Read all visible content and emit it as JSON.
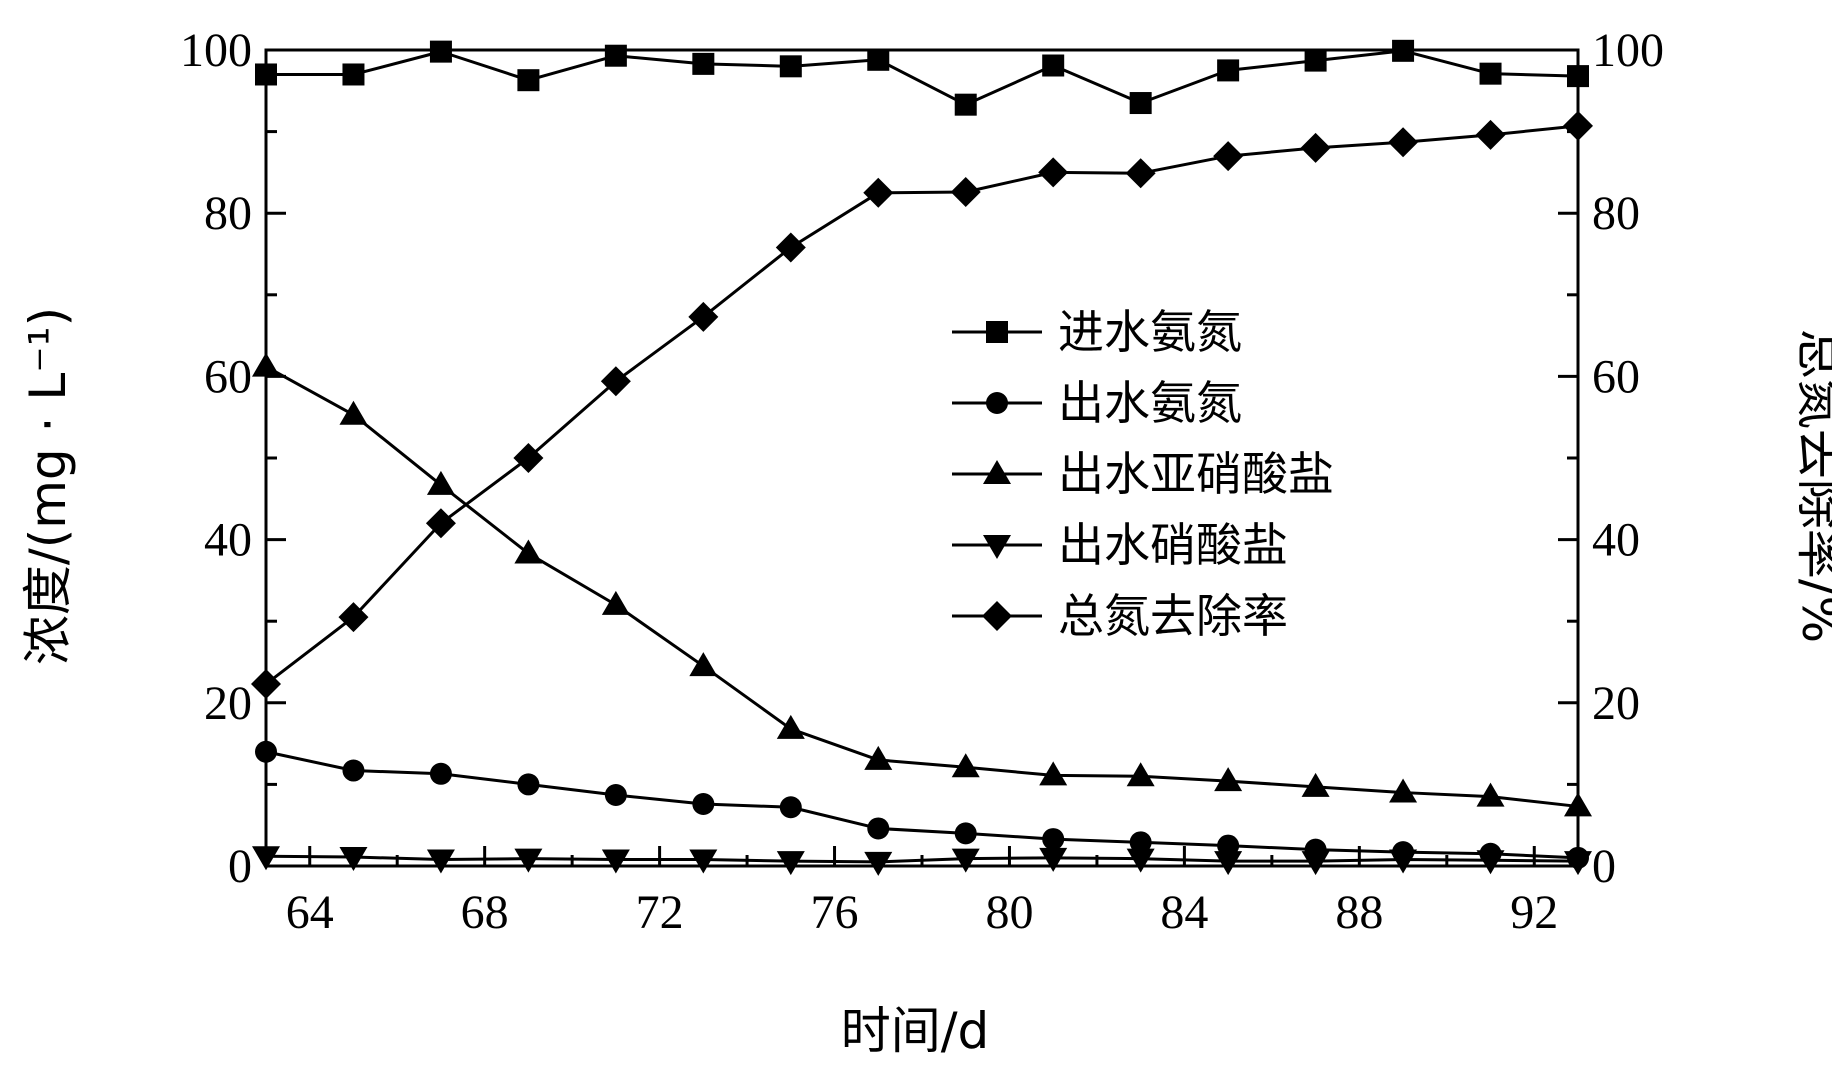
{
  "chart_data": {
    "type": "line",
    "xlabel": "时间/d",
    "ylabel": "浓度/(mg · L⁻¹)",
    "y2label": "总氮去除率/%",
    "xlim": [
      63,
      93
    ],
    "ylim": [
      0,
      100
    ],
    "y2lim": [
      0,
      100
    ],
    "xticks": [
      64,
      68,
      72,
      76,
      80,
      84,
      88,
      92
    ],
    "yticks": [
      0,
      20,
      40,
      60,
      80,
      100
    ],
    "y2ticks": [
      0,
      20,
      40,
      60,
      80,
      100
    ],
    "legend": "center-right",
    "grid": false,
    "x": [
      63,
      65,
      67,
      69,
      71,
      73,
      75,
      77,
      79,
      81,
      83,
      85,
      87,
      89,
      91,
      93
    ],
    "series": [
      {
        "name": "进水氨氮",
        "marker": "square",
        "axis": "left",
        "values": [
          97,
          97,
          99.8,
          96.3,
          99.3,
          98.3,
          98,
          98.8,
          93.3,
          98.1,
          93.5,
          97.5,
          98.7,
          99.9,
          97.1,
          96.8
        ]
      },
      {
        "name": "出水氨氮",
        "marker": "circle",
        "axis": "left",
        "values": [
          14,
          11.7,
          11.3,
          10,
          8.7,
          7.6,
          7.2,
          4.6,
          4,
          3.3,
          2.9,
          2.5,
          2,
          1.7,
          1.5,
          1
        ]
      },
      {
        "name": "出水亚硝酸盐",
        "marker": "triangle-up",
        "axis": "left",
        "values": [
          61.2,
          55.3,
          46.7,
          38.3,
          32,
          24.5,
          16.8,
          13,
          12.1,
          11.1,
          11,
          10.4,
          9.7,
          9,
          8.5,
          7.3
        ]
      },
      {
        "name": "出水硝酸盐",
        "marker": "triangle-down",
        "axis": "left",
        "values": [
          1.2,
          1.1,
          0.8,
          0.9,
          0.8,
          0.8,
          0.6,
          0.5,
          0.9,
          1,
          0.9,
          0.6,
          0.6,
          0.8,
          0.7,
          0.6
        ]
      },
      {
        "name": "总氮去除率",
        "marker": "diamond",
        "axis": "right",
        "values": [
          22.3,
          30.5,
          42,
          50,
          59.4,
          67.3,
          75.8,
          82.5,
          82.6,
          85,
          84.9,
          87,
          88,
          88.7,
          89.6,
          90.7
        ]
      }
    ]
  }
}
